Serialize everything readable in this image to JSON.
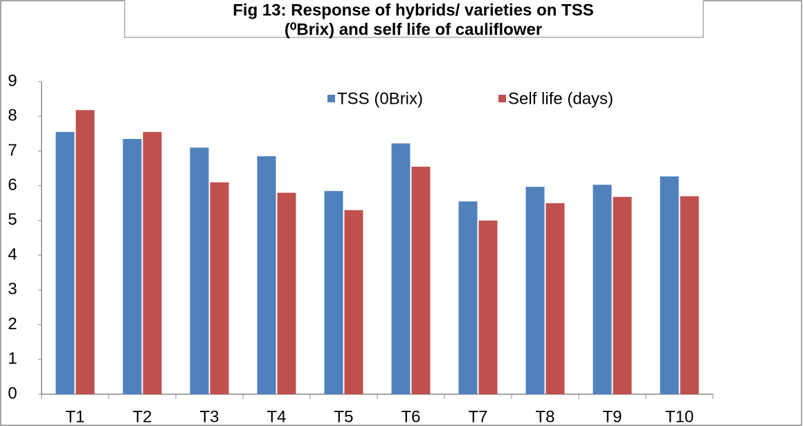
{
  "chart_data": {
    "type": "bar",
    "title": [
      "Fig 13: Response of hybrids/ varieties on TSS",
      "(⁰Brix) and self life of cauliflower"
    ],
    "categories": [
      "T1",
      "T2",
      "T3",
      "T4",
      "T5",
      "T6",
      "T7",
      "T8",
      "T9",
      "T10"
    ],
    "series": [
      {
        "name": "TSS (0Brix)",
        "color": "#4f81bd",
        "values": [
          7.55,
          7.35,
          7.1,
          6.85,
          5.85,
          7.22,
          5.55,
          5.97,
          6.03,
          6.27
        ]
      },
      {
        "name": "Self life (days)",
        "color": "#c0504d",
        "values": [
          8.18,
          7.55,
          6.1,
          5.8,
          5.3,
          6.55,
          5.0,
          5.5,
          5.68,
          5.7
        ]
      }
    ],
    "ylim": [
      0,
      9
    ],
    "yticks": [
      0,
      1,
      2,
      3,
      4,
      5,
      6,
      7,
      8,
      9
    ],
    "grid": false,
    "legend": "top"
  }
}
